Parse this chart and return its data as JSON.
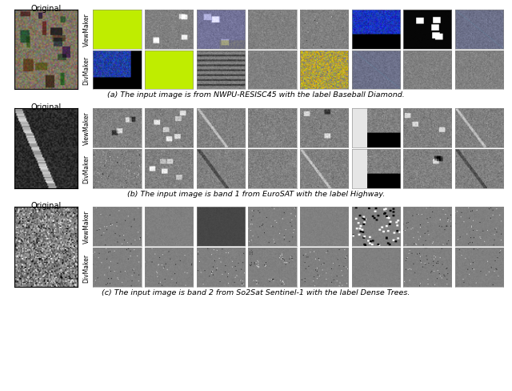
{
  "caption_a": "(a) The input image is from NWPU-RESISC45 with the label Baseball Diamond.",
  "caption_b": "(b) The input image is band 1 from EuroSAT with the label Highway.",
  "caption_c": "(c) The input image is band 2 from So2Sat Sentinel-1 with the label Dense Trees.",
  "label_original": "Original",
  "label_viewmaker": "ViewMaker",
  "label_divmaker": "DivMaker",
  "fig_width": 6.4,
  "fig_height": 4.89,
  "bg_color": "#ffffff",
  "caption_fontsize": 6.8,
  "row_label_fontsize": 5.5,
  "orig_label_fontsize": 7.0,
  "lime_green": [
    0.75,
    0.93,
    0.0
  ],
  "n_aug_cols": 8
}
